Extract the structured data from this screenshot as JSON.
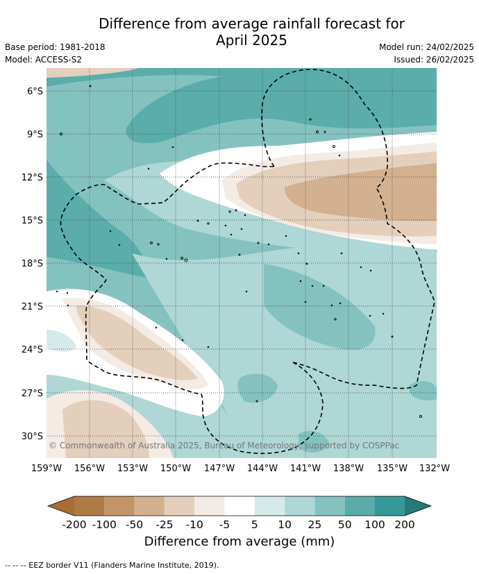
{
  "header": {
    "title_line1": "Difference from average rainfall forecast for",
    "title_line2": "April 2025",
    "base_period": "Base period: 1981-2018",
    "model": "Model: ACCESS-S2",
    "model_run": "Model run: 24/02/2025",
    "issued": "Issued: 26/02/2025"
  },
  "map": {
    "copyright": "© Commonwealth of Australia 2025, Bureau of Meteorology, supported by COSPPac",
    "lat_labels": [
      "6°S",
      "9°S",
      "12°S",
      "15°S",
      "18°S",
      "21°S",
      "24°S",
      "27°S",
      "30°S"
    ],
    "lon_labels": [
      "159°W",
      "156°W",
      "153°W",
      "150°W",
      "147°W",
      "144°W",
      "141°W",
      "138°W",
      "135°W",
      "132°W"
    ]
  },
  "colorbar": {
    "tick_labels": [
      "-200",
      "-100",
      "-50",
      "-25",
      "-10",
      "-5",
      "5",
      "10",
      "25",
      "50",
      "100",
      "200"
    ],
    "colors": [
      "#a86d35",
      "#b07a45",
      "#c39467",
      "#d3b08f",
      "#e4cfbd",
      "#f4ebe5",
      "#ffffff",
      "#d5ebea",
      "#aed7d5",
      "#84c2c0",
      "#5aadab",
      "#35999a",
      "#267a79"
    ],
    "label": "Difference from average (mm)"
  },
  "footer": {
    "eez_note": "--  --  -- EEZ border V11 (Flanders Marine Institute, 2019)."
  }
}
